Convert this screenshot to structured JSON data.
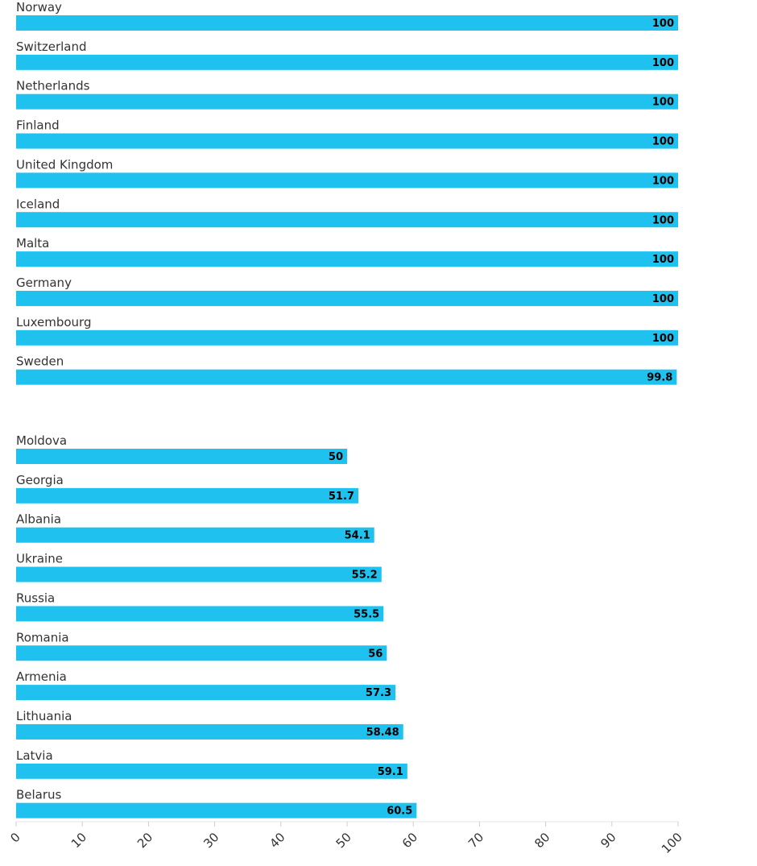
{
  "chart_data": {
    "type": "bar",
    "orientation": "horizontal",
    "xlim": [
      0,
      100
    ],
    "ticks": [
      0,
      10,
      20,
      30,
      40,
      50,
      60,
      70,
      80,
      90,
      100
    ],
    "grid": false,
    "bar_color": "#1fc1ee",
    "groups": [
      {
        "categories": [
          "Norway",
          "Switzerland",
          "Netherlands",
          "Finland",
          "United Kingdom",
          "Iceland",
          "Malta",
          "Germany",
          "Luxembourg",
          "Sweden"
        ],
        "values": [
          100,
          100,
          100,
          100,
          100,
          100,
          100,
          100,
          100,
          99.8
        ],
        "value_labels": [
          "100",
          "100",
          "100",
          "100",
          "100",
          "100",
          "100",
          "100",
          "100",
          "99.8"
        ]
      },
      {
        "categories": [
          "Moldova",
          "Georgia",
          "Albania",
          "Ukraine",
          "Russia",
          "Romania",
          "Armenia",
          "Lithuania",
          "Latvia",
          "Belarus"
        ],
        "values": [
          50,
          51.7,
          54.1,
          55.2,
          55.5,
          56,
          57.3,
          58.48,
          59.1,
          60.5
        ],
        "value_labels": [
          "50",
          "51.7",
          "54.1",
          "55.2",
          "55.5",
          "56",
          "57.3",
          "58.48",
          "59.1",
          "60.5"
        ]
      }
    ]
  }
}
